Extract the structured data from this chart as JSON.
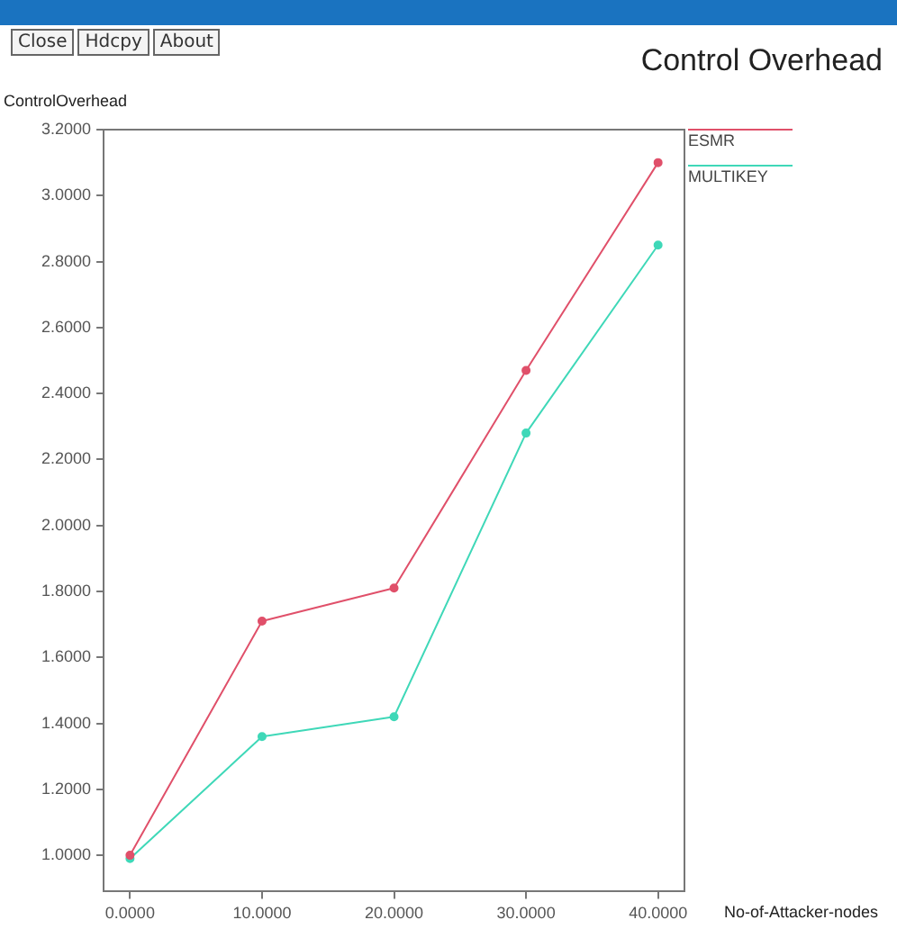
{
  "chart_data": {
    "type": "line",
    "title": "Control Overhead",
    "ylabel": "ControlOverhead",
    "xlabel": "No-of-Attacker-nodes",
    "annotations": [
      "Close",
      "Hdcpy",
      "About"
    ],
    "x": [
      0,
      10,
      20,
      30,
      40
    ],
    "series": [
      {
        "name": "ESMR",
        "color": "#e0506a",
        "values": [
          1.0,
          1.71,
          1.81,
          2.47,
          3.1
        ]
      },
      {
        "name": "MULTIKEY",
        "color": "#3fd8b8",
        "values": [
          0.99,
          1.36,
          1.42,
          2.28,
          2.85
        ]
      }
    ],
    "xlim": [
      -2,
      42
    ],
    "ylim": [
      0.89,
      3.2
    ],
    "xticks": [
      {
        "value": 0,
        "label": "0.0000"
      },
      {
        "value": 10,
        "label": "10.0000"
      },
      {
        "value": 20,
        "label": "20.0000"
      },
      {
        "value": 30,
        "label": "30.0000"
      },
      {
        "value": 40,
        "label": "40.0000"
      }
    ],
    "yticks": [
      {
        "value": 1,
        "label": "1.0000"
      },
      {
        "value": 1.2,
        "label": "1.2000"
      },
      {
        "value": 1.4,
        "label": "1.4000"
      },
      {
        "value": 1.6,
        "label": "1.6000"
      },
      {
        "value": 1.8,
        "label": "1.8000"
      },
      {
        "value": 2,
        "label": "2.0000"
      },
      {
        "value": 2.2,
        "label": "2.2000"
      },
      {
        "value": 2.4,
        "label": "2.4000"
      },
      {
        "value": 2.6,
        "label": "2.6000"
      },
      {
        "value": 2.8,
        "label": "2.8000"
      },
      {
        "value": 3,
        "label": "3.0000"
      },
      {
        "value": 3.2,
        "label": "3.2000"
      }
    ],
    "legend": "top right",
    "marker": "circle"
  }
}
